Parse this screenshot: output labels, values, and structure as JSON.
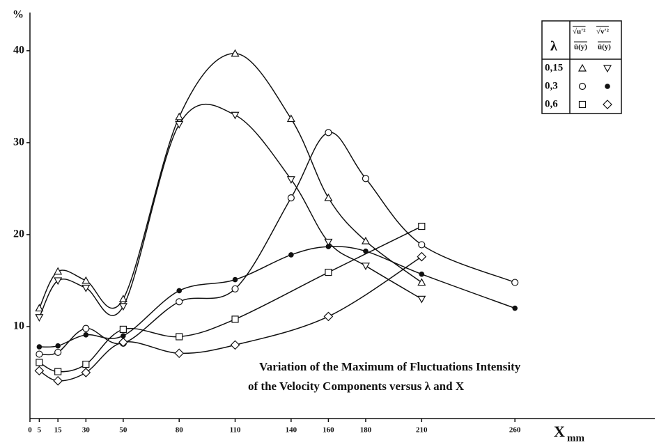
{
  "chart_data": {
    "type": "line",
    "ylabel": "%",
    "xlabel": {
      "main": "X",
      "sub": "mm"
    },
    "xlim": [
      0,
      335
    ],
    "ylim": [
      0,
      44
    ],
    "xticks": [
      0,
      5,
      15,
      30,
      50,
      80,
      110,
      140,
      160,
      180,
      210,
      260
    ],
    "yticks": [
      10,
      20,
      30,
      40
    ],
    "annotation": [
      "Variation of the Maximum of Fluctuations Intensity",
      "of the Velocity Components versus λ and X"
    ],
    "legend": {
      "header": {
        "lambda": "λ",
        "u_num": "√u'²",
        "u_den": "ū(y)",
        "v_num": "√v'²",
        "v_den": "ū(y)"
      },
      "rows": [
        "0,15",
        "0,3",
        "0,6"
      ],
      "position": "upper right"
    },
    "series": [
      {
        "marker": "triangle-up",
        "color": "#111",
        "x": [
          5,
          15,
          30,
          50,
          80,
          110,
          140,
          160,
          180,
          210
        ],
        "values": [
          12,
          16,
          15,
          13,
          32.8,
          39.7,
          32.6,
          24,
          19.3,
          14.8
        ]
      },
      {
        "marker": "triangle-down",
        "color": "#111",
        "x": [
          5,
          15,
          30,
          50,
          80,
          110,
          140,
          160,
          180,
          210
        ],
        "values": [
          11,
          15,
          14.2,
          12.2,
          32,
          33,
          26,
          19.2,
          16.6,
          13
        ]
      },
      {
        "marker": "circle-open",
        "color": "#111",
        "x": [
          5,
          15,
          30,
          50,
          80,
          110,
          140,
          160,
          180,
          210,
          260
        ],
        "values": [
          7,
          7.2,
          9.8,
          8.2,
          12.7,
          14.1,
          24,
          31.1,
          26.1,
          18.9,
          14.8
        ]
      },
      {
        "marker": "circle-filled",
        "color": "#111",
        "x": [
          5,
          15,
          30,
          50,
          80,
          110,
          140,
          160,
          180,
          210,
          260
        ],
        "values": [
          7.8,
          7.9,
          9.1,
          9,
          13.9,
          15.1,
          17.8,
          18.7,
          18.2,
          15.7,
          12
        ]
      },
      {
        "marker": "square",
        "color": "#111",
        "x": [
          5,
          15,
          30,
          50,
          80,
          110,
          160,
          210
        ],
        "values": [
          6.1,
          5.1,
          5.9,
          9.7,
          8.9,
          10.8,
          15.9,
          20.9
        ]
      },
      {
        "marker": "diamond",
        "color": "#111",
        "x": [
          5,
          15,
          30,
          50,
          80,
          110,
          160,
          210
        ],
        "values": [
          5.2,
          4.1,
          5,
          8.3,
          7.1,
          8,
          11.1,
          17.6
        ]
      }
    ]
  }
}
